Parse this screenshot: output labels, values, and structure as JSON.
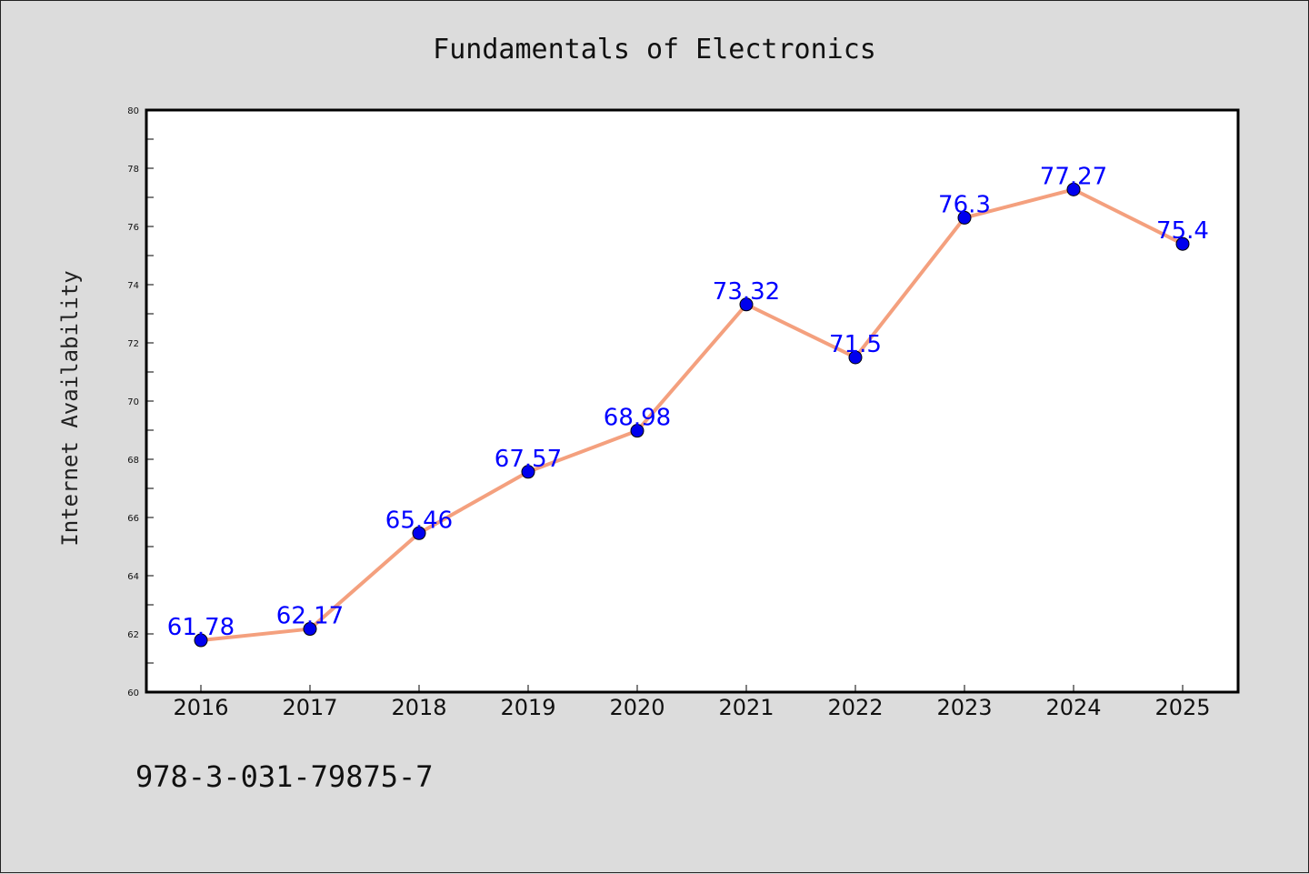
{
  "chart_data": {
    "type": "line",
    "title": "Fundamentals of Electronics",
    "xlabel": "",
    "ylabel": "Internet Availability",
    "x": [
      "2016",
      "2017",
      "2018",
      "2019",
      "2020",
      "2021",
      "2022",
      "2023",
      "2024",
      "2025"
    ],
    "series": [
      {
        "values": [
          61.78,
          62.17,
          65.46,
          67.57,
          68.98,
          73.32,
          71.5,
          76.3,
          77.27,
          75.4
        ],
        "data_labels": [
          "61.78",
          "62.17",
          "65.46",
          "67.57",
          "68.98",
          "73.32",
          "71.5",
          "76.3",
          "77.27",
          "75.4"
        ]
      }
    ],
    "ylim": [
      60,
      80
    ],
    "yticks": [
      "60",
      "62",
      "64",
      "66",
      "68",
      "70",
      "72",
      "74",
      "76",
      "78",
      "80"
    ],
    "grid": false,
    "legend": "none"
  },
  "footer": {
    "isbn": "978-3-031-79875-7"
  },
  "colors": {
    "background": "#dcdcdc",
    "plot_background": "#ffffff",
    "line": "#f4a07e",
    "marker": "#0000ee",
    "data_label": "#0000ff"
  }
}
